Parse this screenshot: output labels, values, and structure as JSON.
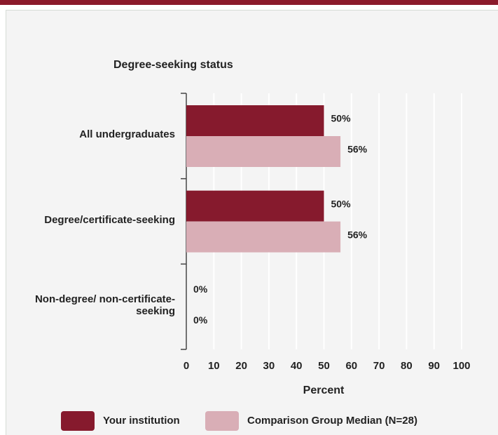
{
  "chart_data": {
    "type": "bar",
    "orientation": "horizontal",
    "title": "Degree-seeking status",
    "categories": [
      "All undergraduates",
      "Degree/certificate-seeking",
      "Non-degree/ non-certificate-seeking"
    ],
    "series": [
      {
        "name": "Your institution",
        "color": "#861a2d",
        "values": [
          50,
          50,
          0
        ],
        "value_labels": [
          "50%",
          "50%",
          "0%"
        ]
      },
      {
        "name": "Comparison Group Median (N=28)",
        "color": "#d9aeb6",
        "values": [
          56,
          56,
          0
        ],
        "value_labels": [
          "56%",
          "56%",
          "0%"
        ]
      }
    ],
    "x_label": "Percent",
    "xlim": [
      0,
      100
    ],
    "xticks": [
      0,
      10,
      20,
      30,
      40,
      50,
      60,
      70,
      80,
      90,
      100
    ],
    "grid": true,
    "legend": "bottom"
  }
}
